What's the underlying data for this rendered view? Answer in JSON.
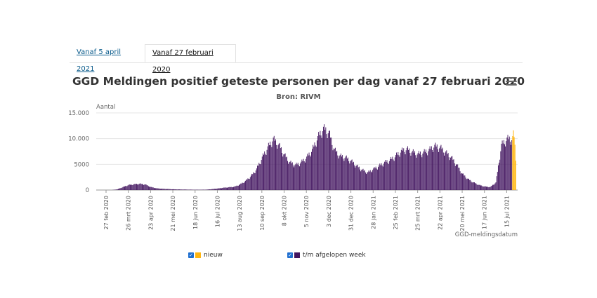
{
  "tabs": [
    {
      "label": "Vanaf 5 april 2021",
      "active": false
    },
    {
      "label": "Vanaf 27 februari 2020",
      "active": true
    }
  ],
  "menu_icon": "hamburger-menu-icon",
  "colors": {
    "week": "#42145f",
    "new": "#ffb612",
    "axis": "#666666",
    "grid": "#e6e6e6"
  },
  "chart_data": {
    "type": "bar",
    "title": "GGD Meldingen positief geteste personen per dag vanaf 27 februari 2020",
    "subtitle": "Bron: RIVM",
    "ylabel": "Aantal",
    "xlabel": "GGD-meldingsdatum",
    "ylim": [
      0,
      15000
    ],
    "yticks": [
      0,
      5000,
      10000,
      15000
    ],
    "ytick_labels": [
      "0",
      "5000",
      "10.000",
      "15.000"
    ],
    "xticks": [
      "27 feb 2020",
      "26 mrt 2020",
      "23 apr 2020",
      "21 mei 2020",
      "18 jun 2020",
      "16 jul 2020",
      "13 aug 2020",
      "10 sep 2020",
      "8 okt 2020",
      "5 nov 2020",
      "3 dec 2020",
      "31 dec 2020",
      "28 jan 2021",
      "25 feb 2021",
      "25 mrt 2021",
      "22 apr 2021",
      "20 mei 2021",
      "17 jun 2021",
      "15 jul 2021"
    ],
    "grid": true,
    "legend_position": "bottom",
    "series": [
      {
        "name": "nieuw",
        "color": "#ffb612",
        "values": [
          10500,
          11600,
          10300,
          8800,
          5700
        ]
      },
      {
        "name": "t/m afgelopen week",
        "color": "#42145f",
        "weekly_profile": [
          [
            0,
            0
          ],
          [
            1,
            0
          ],
          [
            2,
            150
          ],
          [
            3,
            600
          ],
          [
            4,
            1000
          ],
          [
            5,
            1150
          ],
          [
            6,
            1250
          ],
          [
            7,
            1100
          ],
          [
            8,
            600
          ],
          [
            9,
            350
          ],
          [
            10,
            250
          ],
          [
            11,
            200
          ],
          [
            12,
            150
          ],
          [
            13,
            120
          ],
          [
            14,
            100
          ],
          [
            15,
            80
          ],
          [
            16,
            60
          ],
          [
            17,
            60
          ],
          [
            18,
            80
          ],
          [
            19,
            180
          ],
          [
            20,
            300
          ],
          [
            21,
            450
          ],
          [
            22,
            550
          ],
          [
            23,
            650
          ],
          [
            24,
            1100
          ],
          [
            25,
            1800
          ],
          [
            26,
            2800
          ],
          [
            27,
            4200
          ],
          [
            28,
            6500
          ],
          [
            29,
            8500
          ],
          [
            30,
            10200
          ],
          [
            31,
            9000
          ],
          [
            32,
            7000
          ],
          [
            33,
            5500
          ],
          [
            34,
            5000
          ],
          [
            35,
            5500
          ],
          [
            36,
            6500
          ],
          [
            37,
            8000
          ],
          [
            38,
            10500
          ],
          [
            39,
            12300
          ],
          [
            40,
            11500
          ],
          [
            41,
            8000
          ],
          [
            42,
            6800
          ],
          [
            43,
            6500
          ],
          [
            44,
            5800
          ],
          [
            45,
            4800
          ],
          [
            46,
            4000
          ],
          [
            47,
            3500
          ],
          [
            48,
            4200
          ],
          [
            49,
            4800
          ],
          [
            50,
            5500
          ],
          [
            51,
            6000
          ],
          [
            52,
            6800
          ],
          [
            53,
            7800
          ],
          [
            54,
            8200
          ],
          [
            55,
            7600
          ],
          [
            56,
            7200
          ],
          [
            57,
            7500
          ],
          [
            58,
            8000
          ],
          [
            59,
            8800
          ],
          [
            60,
            8500
          ],
          [
            61,
            7500
          ],
          [
            62,
            6500
          ],
          [
            63,
            5000
          ],
          [
            64,
            3200
          ],
          [
            65,
            2200
          ],
          [
            66,
            1500
          ],
          [
            67,
            1000
          ],
          [
            68,
            700
          ],
          [
            69,
            600
          ],
          [
            70,
            1500
          ],
          [
            71,
            9000
          ],
          [
            72,
            10200
          ]
        ]
      }
    ]
  },
  "legend": [
    {
      "label": "nieuw",
      "color": "#ffb612"
    },
    {
      "label": "t/m afgelopen week",
      "color": "#42145f"
    }
  ]
}
